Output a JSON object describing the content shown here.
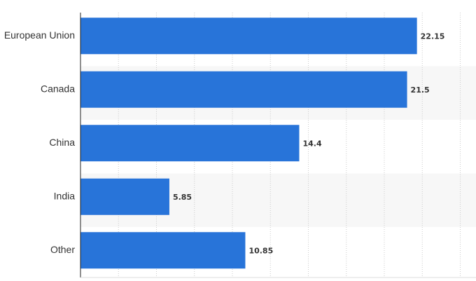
{
  "chart_data": {
    "type": "bar",
    "orientation": "horizontal",
    "categories": [
      "European Union",
      "Canada",
      "China",
      "India",
      "Other"
    ],
    "values": [
      22.15,
      21.5,
      14.4,
      5.85,
      10.85
    ],
    "value_labels": [
      "22.15",
      "21.5",
      "14.4",
      "5.85",
      "10.85"
    ],
    "title": "",
    "xlabel": "",
    "ylabel": "",
    "xlim": [
      0,
      25
    ],
    "grid": "vertical dotted",
    "bar_color": "#2874d9",
    "alt_band_color": "#f7f7f7",
    "legend": "none"
  }
}
